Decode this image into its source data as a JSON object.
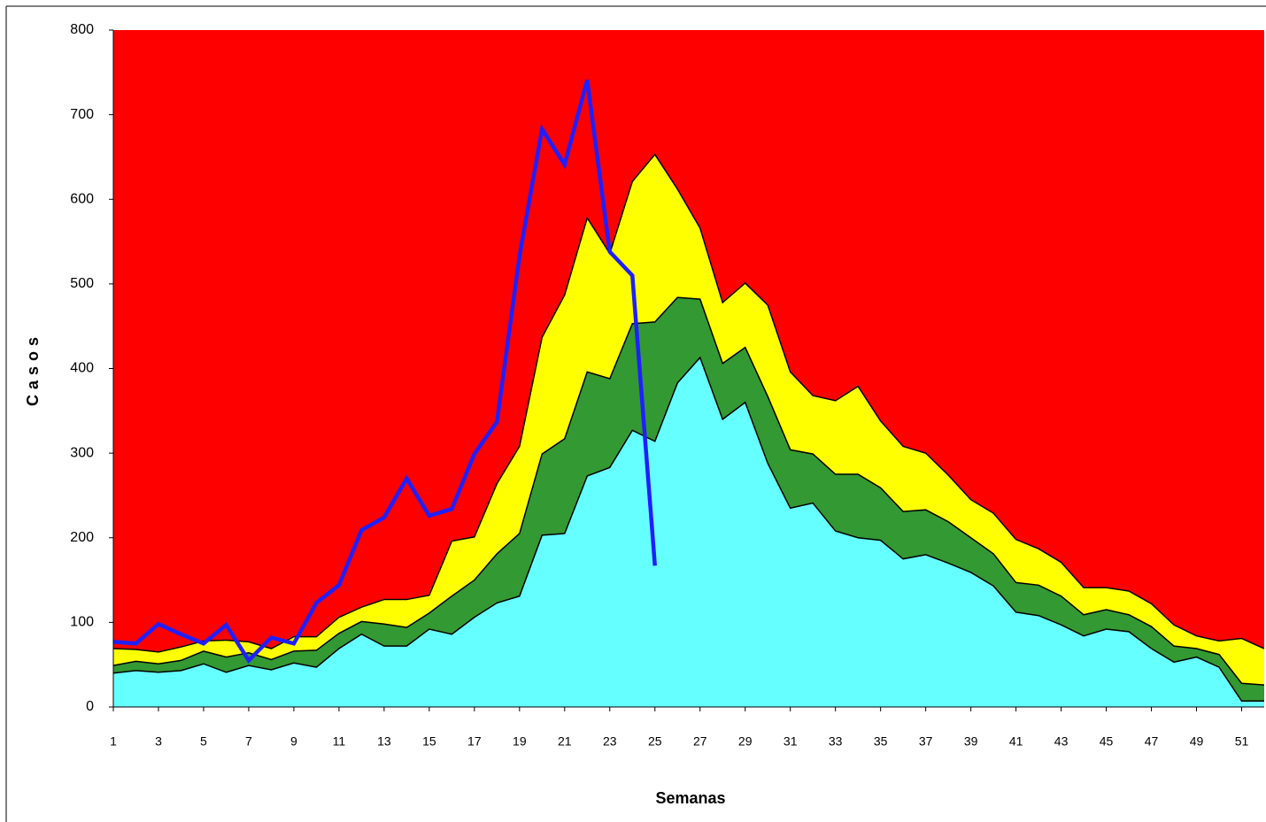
{
  "chart_data": {
    "type": "area",
    "x_label": "Semanas",
    "y_label": "Casos",
    "plot_color": "#ff0000",
    "x": [
      1,
      2,
      3,
      4,
      5,
      6,
      7,
      8,
      9,
      10,
      11,
      12,
      13,
      14,
      15,
      16,
      17,
      18,
      19,
      20,
      21,
      22,
      23,
      24,
      25,
      26,
      27,
      28,
      29,
      30,
      31,
      32,
      33,
      34,
      35,
      36,
      37,
      38,
      39,
      40,
      41,
      42,
      43,
      44,
      45,
      46,
      47,
      48,
      49,
      50,
      51,
      52
    ],
    "xlim": [
      1,
      52
    ],
    "xticks": [
      1,
      3,
      5,
      7,
      9,
      11,
      13,
      15,
      17,
      19,
      21,
      23,
      25,
      27,
      29,
      31,
      33,
      35,
      37,
      39,
      41,
      43,
      45,
      47,
      49,
      51
    ],
    "ylim": [
      0,
      800
    ],
    "yticks": [
      0,
      100,
      200,
      300,
      400,
      500,
      600,
      700,
      800
    ],
    "series": [
      {
        "color": "#ffff00",
        "values": [
          69,
          68,
          65,
          71,
          78,
          79,
          77,
          69,
          83,
          83,
          106,
          118,
          127,
          127,
          132,
          196,
          201,
          264,
          308,
          437,
          487,
          578,
          536,
          621,
          653,
          612,
          566,
          478,
          501,
          475,
          396,
          368,
          362,
          379,
          338,
          308,
          300,
          274,
          245,
          229,
          198,
          187,
          171,
          141,
          141,
          137,
          122,
          97,
          84,
          78,
          81,
          69
        ]
      },
      {
        "color": "#339933",
        "values": [
          49,
          54,
          51,
          55,
          66,
          59,
          64,
          56,
          66,
          67,
          87,
          101,
          98,
          94,
          111,
          131,
          150,
          181,
          205,
          299,
          317,
          396,
          388,
          453,
          455,
          484,
          482,
          406,
          425,
          367,
          304,
          299,
          275,
          275,
          259,
          231,
          233,
          219,
          200,
          181,
          147,
          144,
          131,
          109,
          115,
          109,
          95,
          72,
          69,
          62,
          28,
          26
        ]
      },
      {
        "color": "#66ffff",
        "values": [
          40,
          43,
          41,
          43,
          51,
          41,
          49,
          44,
          52,
          47,
          69,
          86,
          72,
          72,
          92,
          86,
          106,
          123,
          131,
          203,
          205,
          273,
          283,
          327,
          314,
          383,
          413,
          340,
          360,
          288,
          235,
          241,
          208,
          200,
          197,
          175,
          180,
          170,
          159,
          143,
          112,
          108,
          97,
          84,
          92,
          89,
          69,
          53,
          59,
          47,
          7,
          7
        ]
      },
      {
        "type": "line",
        "color": "#1f1fff",
        "values": [
          77,
          75,
          98,
          86,
          75,
          97,
          55,
          82,
          75,
          123,
          144,
          209,
          224,
          270,
          226,
          234,
          299,
          337,
          533,
          683,
          641,
          741,
          538,
          510,
          167,
          null,
          null,
          null,
          null,
          null,
          null,
          null,
          null,
          null,
          null,
          null,
          null,
          null,
          null,
          null,
          null,
          null,
          null,
          null,
          null,
          null,
          null,
          null,
          null,
          null,
          null,
          null
        ]
      }
    ]
  }
}
